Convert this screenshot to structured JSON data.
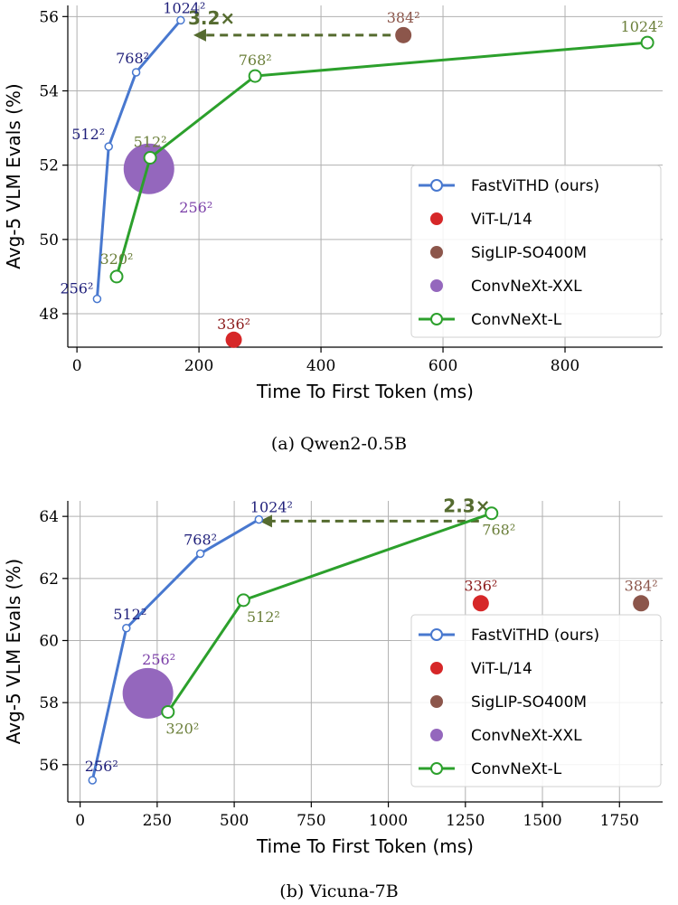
{
  "chart_data": [
    {
      "type": "scatter",
      "title": "",
      "caption": "(a) Qwen2-0.5B",
      "xlabel": "Time To First Token (ms)",
      "ylabel": "Avg-5 VLM Evals (%)",
      "xlim": [
        -15,
        960
      ],
      "ylim": [
        47.1,
        56.3
      ],
      "xticks": [
        0,
        200,
        400,
        600,
        800
      ],
      "xtick_labels": [
        "0",
        "200",
        "400",
        "600",
        "800"
      ],
      "yticks": [
        48,
        50,
        52,
        54,
        56
      ],
      "ytick_labels": [
        "48",
        "50",
        "52",
        "54",
        "56"
      ],
      "grid": true,
      "legend_position": "center-right",
      "speedup": {
        "label": "3.2×",
        "from_x": 535,
        "to_x": 185,
        "y": 55.5
      },
      "series": [
        {
          "name": "FastViTHD (ours)",
          "kind": "line-open",
          "color": "#4878cf",
          "label_color": "#1f1f7a",
          "points": [
            {
              "x": 33,
              "y": 48.4,
              "label": "256²"
            },
            {
              "x": 52,
              "y": 52.5,
              "label": "512²"
            },
            {
              "x": 97,
              "y": 54.5,
              "label": "768²"
            },
            {
              "x": 170,
              "y": 55.9,
              "label": "1024²"
            }
          ]
        },
        {
          "name": "ViT-L/14",
          "kind": "dot",
          "color": "#d62728",
          "label_color": "#8b1a1a",
          "points": [
            {
              "x": 257,
              "y": 47.3,
              "label": "336²"
            }
          ]
        },
        {
          "name": "SigLIP-SO400M",
          "kind": "dot",
          "color": "#8c564b",
          "label_color": "#8c564b",
          "points": [
            {
              "x": 535,
              "y": 55.5,
              "label": "384²"
            }
          ]
        },
        {
          "name": "ConvNeXt-XXL",
          "kind": "big-dot",
          "color": "#9467bd",
          "label_color": "#7b3fa8",
          "points": [
            {
              "x": 118,
              "y": 51.9,
              "label": "256²"
            }
          ]
        },
        {
          "name": "ConvNeXt-L",
          "kind": "line-open",
          "color": "#2ca02c",
          "label_color": "#6b7f3a",
          "points": [
            {
              "x": 65,
              "y": 49.0,
              "label": "320²"
            },
            {
              "x": 120,
              "y": 52.2,
              "label": "512²"
            },
            {
              "x": 292,
              "y": 54.4,
              "label": "768²"
            },
            {
              "x": 935,
              "y": 55.3,
              "label": "1024²"
            }
          ]
        }
      ]
    },
    {
      "type": "scatter",
      "title": "",
      "caption": "(b) Vicuna-7B",
      "xlabel": "Time To First Token (ms)",
      "ylabel": "Avg-5 VLM Evals (%)",
      "xlim": [
        -40,
        1890
      ],
      "ylim": [
        54.8,
        64.5
      ],
      "xticks": [
        0,
        250,
        500,
        750,
        1000,
        1250,
        1500,
        1750
      ],
      "xtick_labels": [
        "0",
        "250",
        "500",
        "750",
        "1000",
        "1250",
        "1500",
        "1750"
      ],
      "yticks": [
        56,
        58,
        60,
        62,
        64
      ],
      "ytick_labels": [
        "56",
        "58",
        "60",
        "62",
        "64"
      ],
      "grid": true,
      "legend_position": "center-right",
      "speedup": {
        "label": "2.3×",
        "from_x": 1335,
        "to_x": 570,
        "y": 63.85
      },
      "series": [
        {
          "name": "FastViTHD (ours)",
          "kind": "line-open",
          "color": "#4878cf",
          "label_color": "#1f1f7a",
          "points": [
            {
              "x": 40,
              "y": 55.5,
              "label": "256²"
            },
            {
              "x": 150,
              "y": 60.4,
              "label": "512²"
            },
            {
              "x": 390,
              "y": 62.8,
              "label": "768²"
            },
            {
              "x": 580,
              "y": 63.9,
              "label": "1024²"
            }
          ]
        },
        {
          "name": "ViT-L/14",
          "kind": "dot",
          "color": "#d62728",
          "label_color": "#8b1a1a",
          "points": [
            {
              "x": 1300,
              "y": 61.2,
              "label": "336²"
            }
          ]
        },
        {
          "name": "SigLIP-SO400M",
          "kind": "dot",
          "color": "#8c564b",
          "label_color": "#8c564b",
          "points": [
            {
              "x": 1820,
              "y": 61.2,
              "label": "384²"
            }
          ]
        },
        {
          "name": "ConvNeXt-XXL",
          "kind": "big-dot",
          "color": "#9467bd",
          "label_color": "#7b3fa8",
          "points": [
            {
              "x": 220,
              "y": 58.3,
              "label": "256²"
            }
          ]
        },
        {
          "name": "ConvNeXt-L",
          "kind": "line-open",
          "color": "#2ca02c",
          "label_color": "#6b7f3a",
          "points": [
            {
              "x": 285,
              "y": 57.7,
              "label": "320²"
            },
            {
              "x": 530,
              "y": 61.3,
              "label": "512²"
            },
            {
              "x": 1335,
              "y": 64.1,
              "label": "768²"
            }
          ]
        }
      ]
    }
  ]
}
